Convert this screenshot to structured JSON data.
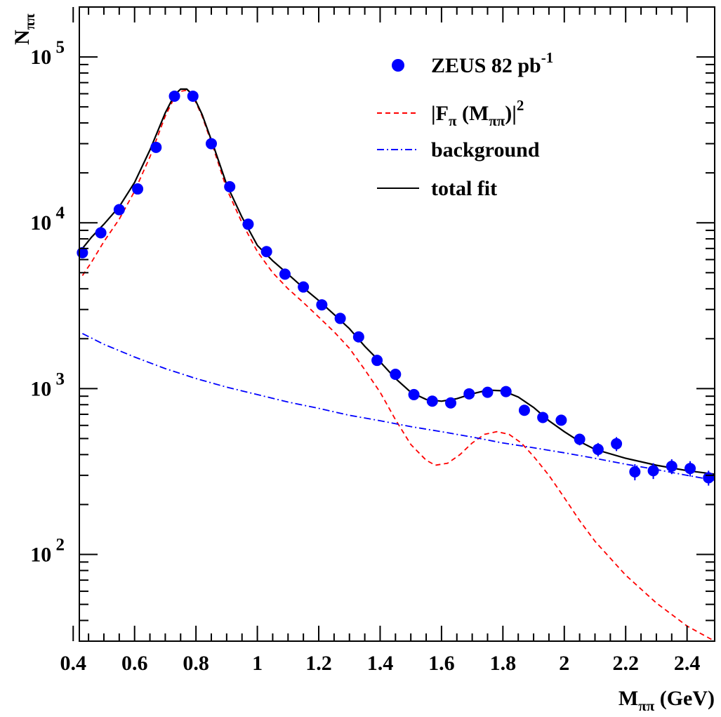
{
  "chart_data": {
    "type": "scatter",
    "xlabel": "M",
    "xlabel_sub": "ππ",
    "xlabel_unit": " (GeV)",
    "ylabel": "N",
    "ylabel_sub": "ππ",
    "xlim": [
      0.42,
      2.49
    ],
    "ylim": [
      30,
      200000
    ],
    "yscale": "log",
    "x_ticks": [
      0.4,
      0.6,
      0.8,
      1,
      1.2,
      1.4,
      1.6,
      1.8,
      2,
      2.2,
      2.4
    ],
    "x_tick_labels": [
      "0.4",
      "0.6",
      "0.8",
      "1",
      "1.2",
      "1.4",
      "1.6",
      "1.8",
      "2",
      "2.2",
      "2.4"
    ],
    "y_ticks": [
      {
        "value": 100,
        "base": "10",
        "exp": "2"
      },
      {
        "value": 1000,
        "base": "10",
        "exp": "3"
      },
      {
        "value": 10000,
        "base": "10",
        "exp": "4"
      },
      {
        "value": 100000,
        "base": "10",
        "exp": "5"
      }
    ],
    "legend_position": "top-right",
    "legend": [
      {
        "kind": "marker",
        "text": "ZEUS 82 pb",
        "sup": "-1",
        "color": "#0000ff"
      },
      {
        "kind": "line-dashed",
        "text": "|F",
        "sub": "π",
        "text2": " (M",
        "sub2": "ππ",
        "text3": ")|",
        "sup": "2",
        "color": "#ff0000"
      },
      {
        "kind": "line-dashdot",
        "text": "background",
        "color": "#0000ff"
      },
      {
        "kind": "line-solid",
        "text": "total fit",
        "color": "#000000"
      }
    ],
    "series": [
      {
        "name": "ZEUS 82 pb-1",
        "role": "data",
        "color": "#0000ff",
        "points": [
          {
            "x": 0.43,
            "y": 6600,
            "err": 300
          },
          {
            "x": 0.49,
            "y": 8700,
            "err": 350
          },
          {
            "x": 0.55,
            "y": 12000,
            "err": 450
          },
          {
            "x": 0.61,
            "y": 16000,
            "err": 550
          },
          {
            "x": 0.67,
            "y": 28500,
            "err": 900
          },
          {
            "x": 0.73,
            "y": 58000,
            "err": 1500
          },
          {
            "x": 0.79,
            "y": 58000,
            "err": 1500
          },
          {
            "x": 0.85,
            "y": 30000,
            "err": 900
          },
          {
            "x": 0.91,
            "y": 16500,
            "err": 550
          },
          {
            "x": 0.97,
            "y": 9800,
            "err": 350
          },
          {
            "x": 1.03,
            "y": 6700,
            "err": 250
          },
          {
            "x": 1.09,
            "y": 4900,
            "err": 200
          },
          {
            "x": 1.15,
            "y": 4100,
            "err": 170
          },
          {
            "x": 1.21,
            "y": 3200,
            "err": 140
          },
          {
            "x": 1.27,
            "y": 2650,
            "err": 120
          },
          {
            "x": 1.33,
            "y": 2050,
            "err": 100
          },
          {
            "x": 1.39,
            "y": 1480,
            "err": 80
          },
          {
            "x": 1.45,
            "y": 1220,
            "err": 70
          },
          {
            "x": 1.51,
            "y": 920,
            "err": 55
          },
          {
            "x": 1.57,
            "y": 840,
            "err": 55
          },
          {
            "x": 1.63,
            "y": 820,
            "err": 55
          },
          {
            "x": 1.69,
            "y": 930,
            "err": 60
          },
          {
            "x": 1.75,
            "y": 950,
            "err": 60
          },
          {
            "x": 1.81,
            "y": 960,
            "err": 60
          },
          {
            "x": 1.87,
            "y": 740,
            "err": 50
          },
          {
            "x": 1.93,
            "y": 670,
            "err": 45
          },
          {
            "x": 1.99,
            "y": 645,
            "err": 45
          },
          {
            "x": 2.05,
            "y": 495,
            "err": 40
          },
          {
            "x": 2.11,
            "y": 430,
            "err": 40
          },
          {
            "x": 2.17,
            "y": 465,
            "err": 45
          },
          {
            "x": 2.23,
            "y": 315,
            "err": 35
          },
          {
            "x": 2.29,
            "y": 320,
            "err": 35
          },
          {
            "x": 2.35,
            "y": 340,
            "err": 35
          },
          {
            "x": 2.41,
            "y": 330,
            "err": 35
          },
          {
            "x": 2.47,
            "y": 290,
            "err": 30
          }
        ]
      },
      {
        "name": "|Fπ(Mππ)|²",
        "role": "dashed",
        "color": "#ff0000",
        "x": [
          0.43,
          0.46,
          0.5,
          0.55,
          0.6,
          0.65,
          0.7,
          0.73,
          0.75,
          0.77,
          0.79,
          0.82,
          0.86,
          0.9,
          0.95,
          1.0,
          1.05,
          1.1,
          1.15,
          1.2,
          1.25,
          1.3,
          1.35,
          1.4,
          1.45,
          1.5,
          1.55,
          1.58,
          1.62,
          1.66,
          1.7,
          1.74,
          1.78,
          1.82,
          1.86,
          1.9,
          1.95,
          2.0,
          2.05,
          2.1,
          2.2,
          2.3,
          2.4,
          2.49
        ],
        "y": [
          4800,
          5800,
          7700,
          10500,
          15500,
          25000,
          44000,
          57000,
          62000,
          63000,
          58000,
          44000,
          27000,
          16000,
          10000,
          6700,
          5000,
          4000,
          3300,
          2700,
          2200,
          1750,
          1300,
          950,
          650,
          460,
          370,
          345,
          355,
          400,
          470,
          530,
          550,
          530,
          470,
          390,
          300,
          220,
          160,
          120,
          75,
          51,
          37,
          30
        ]
      },
      {
        "name": "background",
        "role": "dashdot",
        "color": "#0000ff",
        "x": [
          0.43,
          0.5,
          0.6,
          0.7,
          0.8,
          0.9,
          1.0,
          1.1,
          1.2,
          1.3,
          1.4,
          1.5,
          1.6,
          1.7,
          1.8,
          1.9,
          2.0,
          2.1,
          2.2,
          2.3,
          2.4,
          2.49
        ],
        "y": [
          2150,
          1850,
          1550,
          1320,
          1150,
          1020,
          920,
          830,
          760,
          690,
          640,
          590,
          550,
          510,
          470,
          440,
          410,
          380,
          350,
          325,
          300,
          280
        ]
      },
      {
        "name": "total fit",
        "role": "solid",
        "color": "#000000",
        "x": [
          0.43,
          0.46,
          0.5,
          0.55,
          0.6,
          0.65,
          0.7,
          0.73,
          0.75,
          0.77,
          0.79,
          0.82,
          0.86,
          0.9,
          0.95,
          1.0,
          1.05,
          1.1,
          1.15,
          1.2,
          1.25,
          1.3,
          1.35,
          1.4,
          1.45,
          1.5,
          1.55,
          1.6,
          1.65,
          1.7,
          1.75,
          1.8,
          1.85,
          1.9,
          1.95,
          2.0,
          2.05,
          2.1,
          2.2,
          2.3,
          2.4,
          2.49
        ],
        "y": [
          7000,
          8200,
          9800,
          12500,
          17500,
          27500,
          46000,
          59000,
          64000,
          64000,
          59000,
          45000,
          28000,
          17000,
          10800,
          7300,
          5900,
          4900,
          4050,
          3400,
          2800,
          2300,
          1800,
          1450,
          1150,
          950,
          860,
          840,
          870,
          930,
          980,
          970,
          890,
          770,
          640,
          550,
          480,
          430,
          380,
          345,
          320,
          305
        ]
      }
    ]
  }
}
